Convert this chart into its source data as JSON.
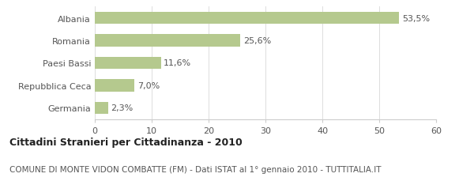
{
  "categories": [
    "Germania",
    "Repubblica Ceca",
    "Paesi Bassi",
    "Romania",
    "Albania"
  ],
  "values": [
    2.3,
    7.0,
    11.6,
    25.6,
    53.5
  ],
  "labels": [
    "2,3%",
    "7,0%",
    "11,6%",
    "25,6%",
    "53,5%"
  ],
  "bar_color": "#b5c98e",
  "background_color": "#ffffff",
  "xlim": [
    0,
    60
  ],
  "xticks": [
    0,
    10,
    20,
    30,
    40,
    50,
    60
  ],
  "title_bold": "Cittadini Stranieri per Cittadinanza - 2010",
  "subtitle": "COMUNE DI MONTE VIDON COMBATTE (FM) - Dati ISTAT al 1° gennaio 2010 - TUTTITALIA.IT",
  "title_fontsize": 9,
  "subtitle_fontsize": 7.5,
  "label_fontsize": 8,
  "tick_fontsize": 8,
  "category_fontsize": 8
}
